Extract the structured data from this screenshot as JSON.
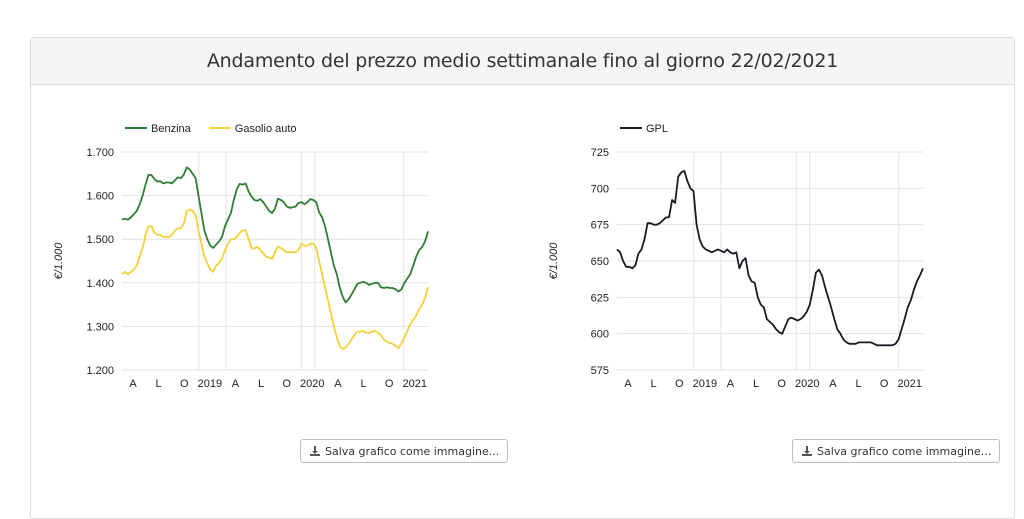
{
  "header": {
    "title": "Andamento del prezzo medio settimanale fino al giorno 22/02/2021"
  },
  "save_button_label": "Salva grafico come immagine...",
  "chart_data": [
    {
      "type": "line",
      "ylabel": "€/1.000",
      "ylim": [
        1.2,
        1.7
      ],
      "yticks": [
        "1.200",
        "1.300",
        "1.400",
        "1.500",
        "1.600",
        "1.700"
      ],
      "xticks": [
        "A",
        "L",
        "O",
        "2019",
        "A",
        "L",
        "O",
        "2020",
        "A",
        "L",
        "O",
        "2021"
      ],
      "legend_position": "top-left",
      "grid": true,
      "series": [
        {
          "name": "Benzina",
          "color": "#2e7d32",
          "values": [
            1.545,
            1.547,
            1.545,
            1.55,
            1.557,
            1.565,
            1.58,
            1.6,
            1.625,
            1.648,
            1.647,
            1.638,
            1.632,
            1.633,
            1.628,
            1.63,
            1.63,
            1.628,
            1.635,
            1.642,
            1.64,
            1.648,
            1.665,
            1.66,
            1.65,
            1.64,
            1.6,
            1.56,
            1.52,
            1.5,
            1.485,
            1.48,
            1.488,
            1.495,
            1.505,
            1.53,
            1.545,
            1.56,
            1.59,
            1.615,
            1.627,
            1.625,
            1.628,
            1.61,
            1.598,
            1.59,
            1.588,
            1.592,
            1.585,
            1.575,
            1.565,
            1.56,
            1.57,
            1.593,
            1.59,
            1.585,
            1.575,
            1.572,
            1.573,
            1.575,
            1.583,
            1.585,
            1.58,
            1.585,
            1.592,
            1.59,
            1.585,
            1.562,
            1.55,
            1.53,
            1.5,
            1.47,
            1.44,
            1.42,
            1.39,
            1.368,
            1.355,
            1.362,
            1.373,
            1.385,
            1.398,
            1.4,
            1.402,
            1.4,
            1.395,
            1.398,
            1.4,
            1.4,
            1.39,
            1.388,
            1.39,
            1.388,
            1.388,
            1.385,
            1.38,
            1.385,
            1.4,
            1.41,
            1.42,
            1.44,
            1.46,
            1.475,
            1.482,
            1.495,
            1.518
          ]
        },
        {
          "name": "Gasolio auto",
          "color": "#f2d23a",
          "values": [
            1.42,
            1.425,
            1.42,
            1.425,
            1.43,
            1.44,
            1.46,
            1.48,
            1.51,
            1.53,
            1.53,
            1.515,
            1.51,
            1.51,
            1.505,
            1.505,
            1.505,
            1.51,
            1.52,
            1.525,
            1.525,
            1.535,
            1.565,
            1.568,
            1.565,
            1.555,
            1.52,
            1.49,
            1.46,
            1.445,
            1.43,
            1.425,
            1.44,
            1.445,
            1.455,
            1.475,
            1.49,
            1.5,
            1.5,
            1.505,
            1.515,
            1.52,
            1.52,
            1.502,
            1.48,
            1.478,
            1.483,
            1.475,
            1.468,
            1.46,
            1.458,
            1.455,
            1.47,
            1.483,
            1.48,
            1.475,
            1.47,
            1.47,
            1.47,
            1.47,
            1.475,
            1.49,
            1.485,
            1.485,
            1.49,
            1.49,
            1.48,
            1.45,
            1.42,
            1.39,
            1.36,
            1.33,
            1.3,
            1.275,
            1.255,
            1.248,
            1.252,
            1.26,
            1.27,
            1.28,
            1.288,
            1.288,
            1.29,
            1.285,
            1.285,
            1.288,
            1.29,
            1.285,
            1.28,
            1.27,
            1.265,
            1.262,
            1.26,
            1.255,
            1.25,
            1.262,
            1.275,
            1.29,
            1.305,
            1.315,
            1.325,
            1.34,
            1.35,
            1.365,
            1.39
          ]
        }
      ]
    },
    {
      "type": "line",
      "ylabel": "€/1.000",
      "ylim": [
        575,
        725
      ],
      "yticks": [
        "575",
        "600",
        "625",
        "650",
        "675",
        "700",
        "725"
      ],
      "xticks": [
        "A",
        "L",
        "O",
        "2019",
        "A",
        "L",
        "O",
        "2020",
        "A",
        "L",
        "O",
        "2021"
      ],
      "legend_position": "top-left",
      "grid": true,
      "series": [
        {
          "name": "GPL",
          "color": "#1a1a24",
          "values": [
            658,
            656,
            650,
            646,
            646,
            645,
            647,
            655,
            658,
            665,
            676,
            676,
            675,
            675,
            676,
            678,
            680,
            680,
            692,
            690,
            708,
            711,
            712,
            705,
            700,
            698,
            675,
            665,
            660,
            658,
            657,
            656,
            657,
            658,
            657,
            656,
            658,
            656,
            655,
            656,
            645,
            650,
            652,
            640,
            636,
            635,
            625,
            620,
            618,
            610,
            608,
            606,
            603,
            601,
            600,
            605,
            610,
            611,
            610,
            609,
            610,
            612,
            615,
            620,
            630,
            642,
            644,
            640,
            632,
            625,
            618,
            610,
            603,
            600,
            596,
            594,
            593,
            593,
            593,
            594,
            594,
            594,
            594,
            594,
            593,
            592,
            592,
            592,
            592,
            592,
            592,
            593,
            596,
            603,
            610,
            618,
            623,
            630,
            636,
            640,
            645
          ]
        }
      ]
    }
  ]
}
